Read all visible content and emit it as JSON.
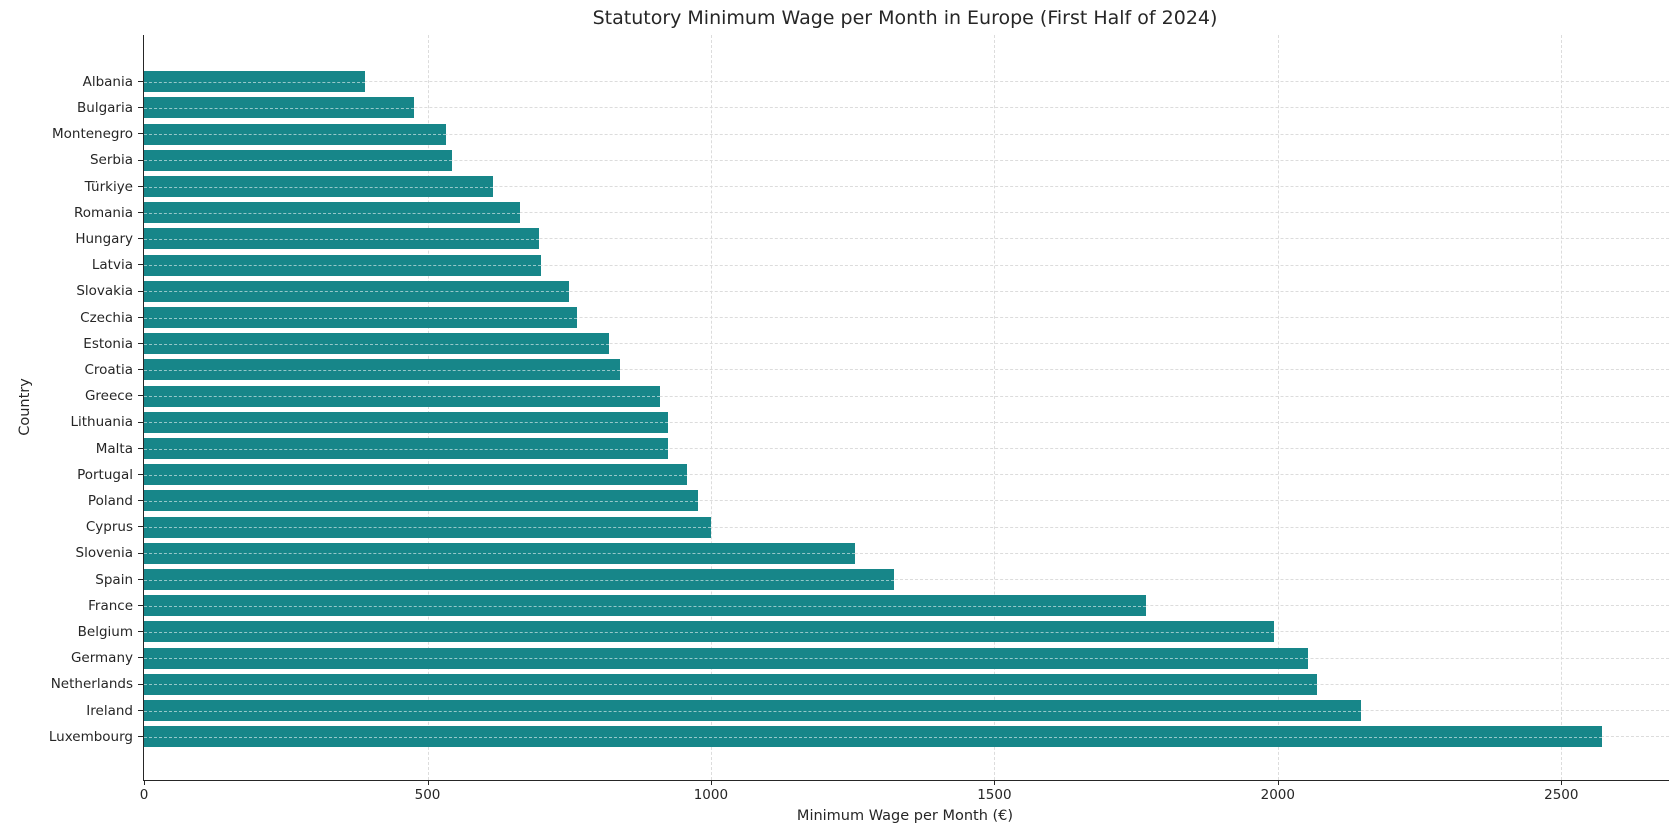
{
  "chart_data": {
    "type": "bar",
    "orientation": "horizontal",
    "title": "Statutory Minimum Wage per Month in Europe (First Half of 2024)",
    "xlabel": "Minimum Wage per Month (€)",
    "ylabel": "Country",
    "categories": [
      "Albania",
      "Bulgaria",
      "Montenegro",
      "Serbia",
      "Türkiye",
      "Romania",
      "Hungary",
      "Latvia",
      "Slovakia",
      "Czechia",
      "Estonia",
      "Croatia",
      "Greece",
      "Lithuania",
      "Malta",
      "Portugal",
      "Poland",
      "Cyprus",
      "Slovenia",
      "Spain",
      "France",
      "Belgium",
      "Germany",
      "Netherlands",
      "Ireland",
      "Luxembourg"
    ],
    "values": [
      390,
      477,
      532,
      544,
      615,
      663,
      697,
      700,
      750,
      764,
      820,
      840,
      910,
      924,
      925,
      957,
      978,
      1000,
      1254,
      1323,
      1767,
      1994,
      2054,
      2069,
      2146,
      2571
    ],
    "xticks": [
      0,
      500,
      1000,
      1500,
      2000,
      2500
    ],
    "xlim": [
      0,
      2690
    ],
    "grid": true,
    "legend_position": "none",
    "bar_color": "#178689",
    "grid_color": "#dcdcdc",
    "axis_color": "#262626"
  }
}
